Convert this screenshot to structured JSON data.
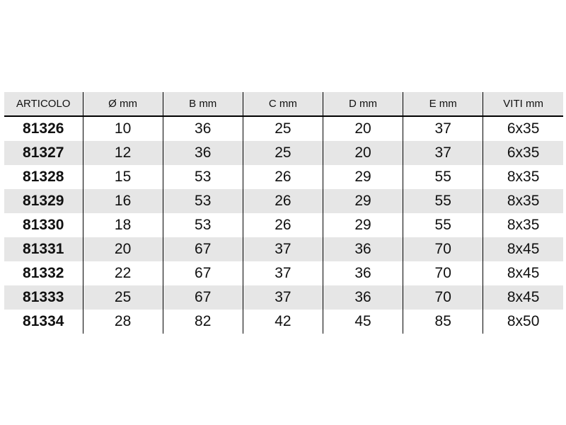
{
  "table": {
    "headers": [
      "ARTICOLO",
      "Ø mm",
      "B mm",
      "C mm",
      "D mm",
      "E mm",
      "VITI mm"
    ],
    "rows": [
      [
        "81326",
        "10",
        "36",
        "25",
        "20",
        "37",
        "6x35"
      ],
      [
        "81327",
        "12",
        "36",
        "25",
        "20",
        "37",
        "6x35"
      ],
      [
        "81328",
        "15",
        "53",
        "26",
        "29",
        "55",
        "8x35"
      ],
      [
        "81329",
        "16",
        "53",
        "26",
        "29",
        "55",
        "8x35"
      ],
      [
        "81330",
        "18",
        "53",
        "26",
        "29",
        "55",
        "8x35"
      ],
      [
        "81331",
        "20",
        "67",
        "37",
        "36",
        "70",
        "8x45"
      ],
      [
        "81332",
        "22",
        "67",
        "37",
        "36",
        "70",
        "8x45"
      ],
      [
        "81333",
        "25",
        "67",
        "37",
        "36",
        "70",
        "8x45"
      ],
      [
        "81334",
        "28",
        "82",
        "42",
        "45",
        "85",
        "8x50"
      ]
    ]
  }
}
